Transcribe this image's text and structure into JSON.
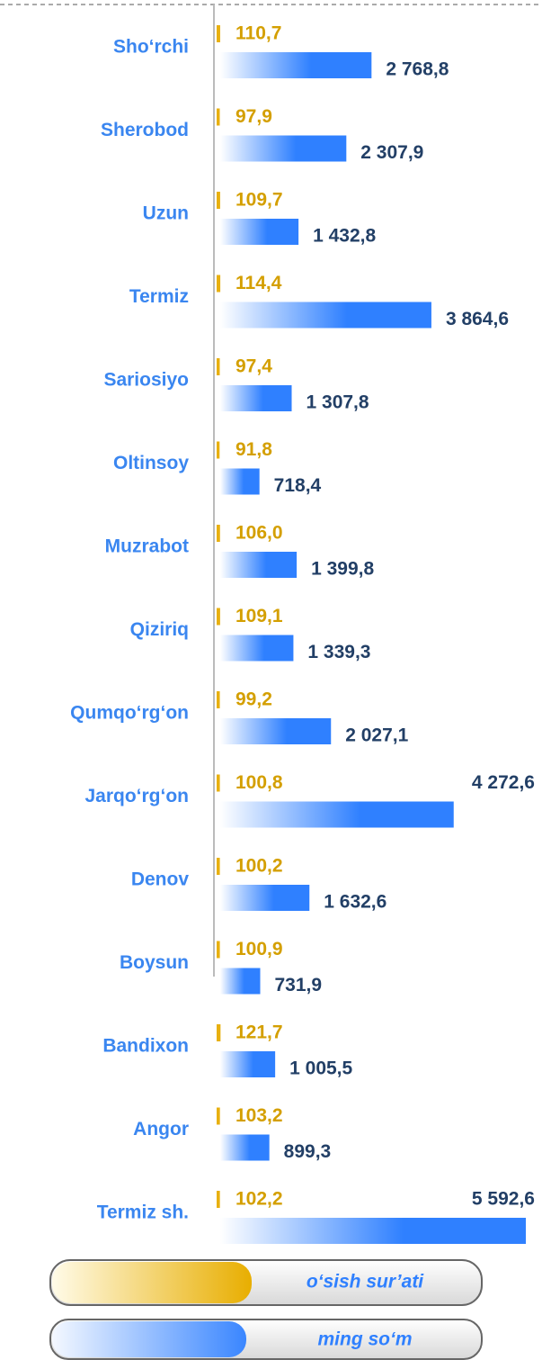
{
  "chart_data": {
    "type": "bar",
    "orientation": "horizontal",
    "categories": [
      "Sho‘rchi",
      "Sherobod",
      "Uzun",
      "Termiz",
      "Sariosiyo",
      "Oltinsoy",
      "Muzrabot",
      "Qiziriq",
      "Qumqo‘rg‘on",
      "Jarqo‘rg‘on",
      "Denov",
      "Boysun",
      "Bandixon",
      "Angor",
      "Termiz sh."
    ],
    "series": [
      {
        "name": "o‘sish sur’ati",
        "color": "#e8b010",
        "values": [
          110.7,
          97.9,
          109.7,
          114.4,
          97.4,
          91.8,
          106.0,
          109.1,
          99.2,
          100.8,
          100.2,
          100.9,
          121.7,
          103.2,
          102.2
        ],
        "value_labels": [
          "110,7",
          "97,9",
          "109,7",
          "114,4",
          "97,4",
          "91,8",
          "106,0",
          "109,1",
          "99,2",
          "100,8",
          "100,2",
          "100,9",
          "121,7",
          "103,2",
          "102,2"
        ]
      },
      {
        "name": "ming so‘m",
        "color": "#2f80ff",
        "values": [
          2768.8,
          2307.9,
          1432.8,
          3864.6,
          1307.8,
          718.4,
          1399.8,
          1339.3,
          2027.1,
          4272.6,
          1632.6,
          731.9,
          1005.5,
          899.3,
          5592.6
        ],
        "value_labels": [
          "2 768,8",
          "2 307,9",
          "1 432,8",
          "3 864,6",
          "1 307,8",
          "718,4",
          "1 399,8",
          "1 339,3",
          "2 027,1",
          "4 272,6",
          "1 632,6",
          "731,9",
          "1 005,5",
          "899,3",
          "5 592,6"
        ]
      }
    ],
    "xlim": [
      0,
      5600
    ]
  }
}
